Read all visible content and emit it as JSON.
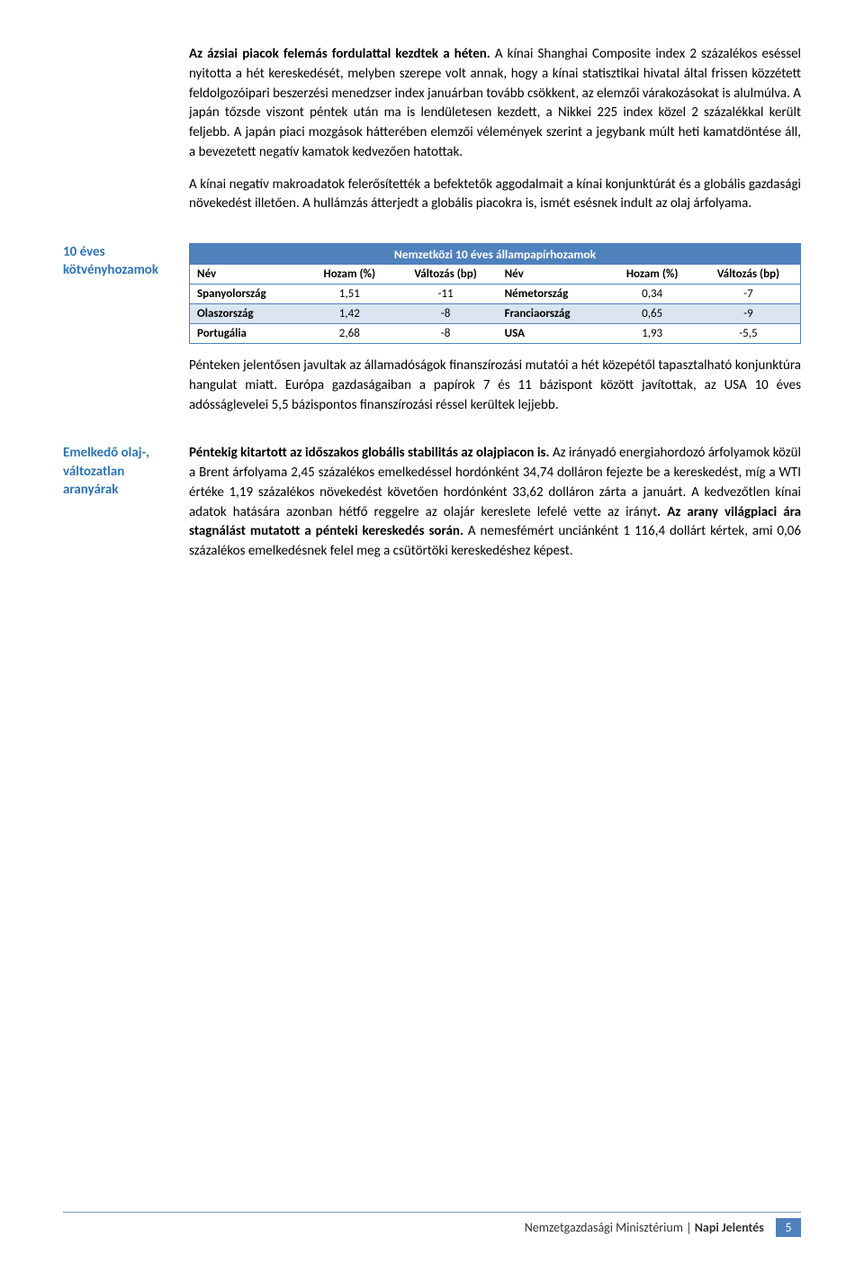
{
  "para1_sent1": "Az ázsiai piacok felemás fordulattal kezdtek a héten.",
  "para1_rest": " A kínai Shanghai Composite index 2 százalékos eséssel nyitotta a hét kereskedését, melyben szerepe volt annak, hogy a kínai statisztikai hivatal által frissen közzétett feldolgozóipari beszerzési menedzser index januárban tovább csökkent, az elemzői várakozásokat is alulmúlva. A japán tőzsde viszont péntek után ma is lendületesen kezdett, a Nikkei 225 index közel 2 százalékkal került feljebb. A japán piaci mozgások hátterében elemzői vélemények szerint a jegybank múlt heti kamatdöntése áll, a bevezetett negatív kamatok kedvezően hatottak.",
  "para2": "A kínai negatív makroadatok felerősítették a befektetők aggodalmait a kínai konjunktúrát és a globális gazdasági növekedést illetően. A hullámzás átterjedt a globális piacokra is, ismét esésnek indult az olaj árfolyama.",
  "side1": "10 éves kötvényhozamok",
  "table": {
    "title": "Nemzetközi 10 éves állampapírhozamok",
    "headers": [
      "Név",
      "Hozam (%)",
      "Változás (bp)",
      "Név",
      "Hozam (%)",
      "Változás (bp)"
    ],
    "rows": [
      [
        "Spanyolország",
        "1,51",
        "-11",
        "Németország",
        "0,34",
        "-7"
      ],
      [
        "Olaszország",
        "1,42",
        "-8",
        "Franciaország",
        "0,65",
        "-9"
      ],
      [
        "Portugália",
        "2,68",
        "-8",
        "USA",
        "1,93",
        "-5,5"
      ]
    ],
    "colors": {
      "header_bg": "#4f81bd",
      "header_fg": "#ffffff",
      "alt_row_bg": "#dbe5f1",
      "border": "#4f81bd"
    }
  },
  "para3": "Pénteken jelentősen javultak az államadóságok finanszírozási mutatói a hét közepétől tapasztalható konjunktúra hangulat miatt. Európa gazdaságaiban a papírok 7 és 11 bázispont között javítottak, az USA 10 éves adósságlevelei 5,5 bázispontos finanszírozási réssel kerültek lejjebb.",
  "side2": "Emelkedő olaj-, változatlan aranyárak",
  "para4_b1": "Péntekig kitartott az időszakos globális stabilitás az olajpiacon is.",
  "para4_m1": " Az irányadó energiahordozó árfolyamok közül a Brent árfolyama 2,45 százalékos emelkedéssel hordónként 34,74 dolláron fejezte be a kereskedést, míg a WTI értéke 1,19 százalékos növekedést követően hordónként 33,62 dolláron zárta a januárt. A kedvezőtlen kínai adatok hatására azonban hétfő reggelre az olajár kereslete lefelé vette az irányt",
  "para4_b2": ". Az arany világpiaci ára stagnálást mutatott a pénteki kereskedés során.",
  "para4_m2": " A nemesfémért unciánként 1 116,4 dollárt kértek, ami 0,06 százalékos emelkedésnek felel meg a csütörtöki kereskedéshez képest.",
  "footer": {
    "org": "Nemzetgazdasági Minisztérium",
    "sep": " | ",
    "title": "Napi Jelentés",
    "page": "5"
  }
}
